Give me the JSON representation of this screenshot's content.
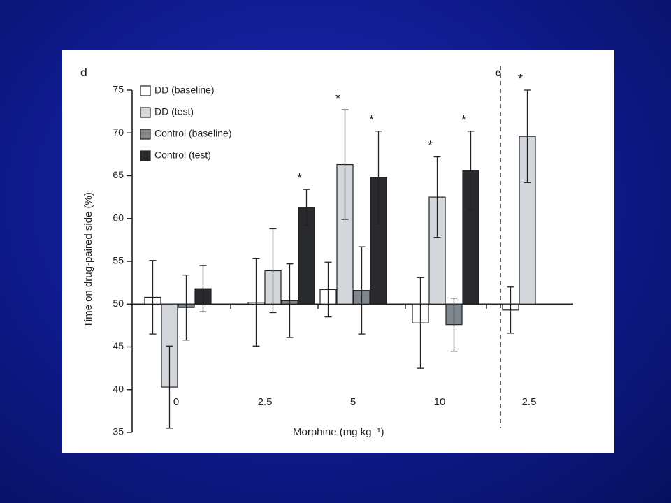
{
  "slide": {
    "background_color": "#1020a0"
  },
  "chart_data": {
    "type": "bar",
    "panel_labels": [
      "d",
      "e"
    ],
    "xlabel": "Morphine (mg kg⁻¹)",
    "ylabel": "Time on drug-paired side (%)",
    "ylim": [
      35,
      75
    ],
    "baseline": 50,
    "yticks": [
      35,
      40,
      45,
      50,
      55,
      60,
      65,
      70,
      75
    ],
    "categories": [
      "0",
      "2.5",
      "5",
      "10",
      "2.5"
    ],
    "legend": {
      "position": "top-left"
    },
    "series": [
      {
        "name": "DD (baseline)",
        "color": "#ffffff",
        "values": [
          50.8,
          50.2,
          51.7,
          47.8,
          49.3
        ],
        "errors": [
          4.3,
          5.1,
          3.2,
          5.3,
          2.7
        ],
        "significant": [
          false,
          false,
          false,
          false,
          false
        ]
      },
      {
        "name": "DD (test)",
        "color": "#d3d7db",
        "values": [
          40.3,
          53.9,
          66.3,
          62.5,
          69.6
        ],
        "errors": [
          4.8,
          4.9,
          6.4,
          4.7,
          5.4
        ],
        "significant": [
          false,
          false,
          true,
          true,
          true
        ]
      },
      {
        "name": "Control (baseline)",
        "color": "#7f878e",
        "values": [
          49.6,
          50.4,
          51.6,
          47.6,
          null
        ],
        "errors": [
          3.8,
          4.3,
          5.1,
          3.1,
          null
        ],
        "significant": [
          false,
          false,
          false,
          false,
          false
        ]
      },
      {
        "name": "Control (test)",
        "color": "#282a2d",
        "values": [
          51.8,
          61.3,
          64.8,
          65.6,
          null
        ],
        "errors": [
          2.7,
          2.1,
          5.4,
          4.6,
          null
        ],
        "significant": [
          false,
          true,
          true,
          true,
          false
        ]
      }
    ],
    "significance_marker": "*"
  }
}
